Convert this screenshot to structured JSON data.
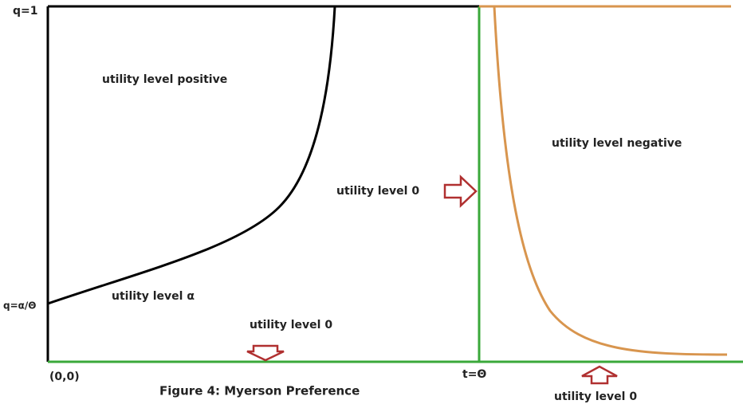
{
  "axis_labels": {
    "q_top": "q=1",
    "q_low": "q=α/Θ",
    "origin": "(0,0)",
    "t_theta": "t=Θ"
  },
  "regions": {
    "positive": "utility level positive",
    "negative": "utility level negative",
    "zero_right_arrow": "utility level 0",
    "alpha": "utility level α",
    "zero_bottom": "utility level 0",
    "zero_below_axis": "utility level 0"
  },
  "caption": "Figure 4:  Myerson Preference"
}
